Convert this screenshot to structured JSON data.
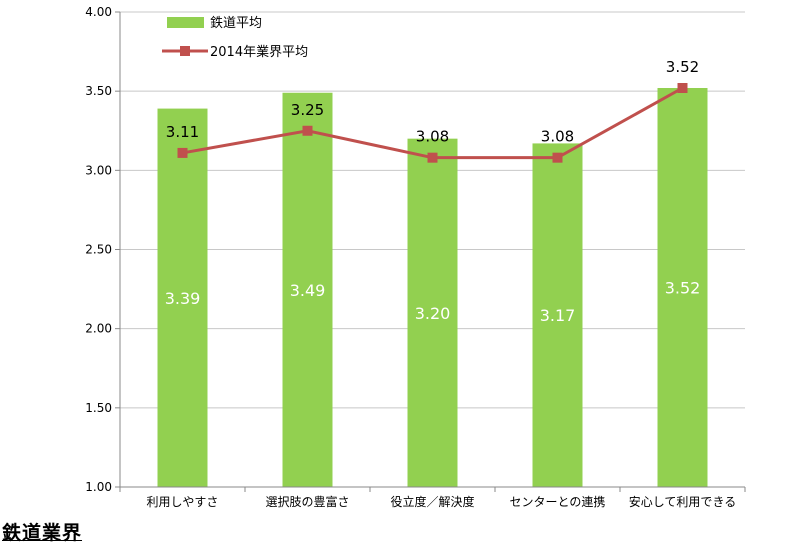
{
  "caption": "鉄道業界",
  "chart_data": {
    "type": "bar",
    "categories": [
      "利用しやすさ",
      "選択肢の豊富さ",
      "役立度／解決度",
      "センターとの連携",
      "安心して利用できる"
    ],
    "ylim": [
      1.0,
      4.0
    ],
    "yticks": [
      "1.00",
      "1.50",
      "2.00",
      "2.50",
      "3.00",
      "3.50",
      "4.00"
    ],
    "grid": true,
    "legend_position": "top-left",
    "series": [
      {
        "name": "鉄道平均",
        "type": "bar",
        "color": "#92d050",
        "values": [
          3.39,
          3.49,
          3.2,
          3.17,
          3.52
        ],
        "labels": [
          "3.39",
          "3.49",
          "3.20",
          "3.17",
          "3.52"
        ]
      },
      {
        "name": "2014年業界平均",
        "type": "line",
        "color": "#c0504d",
        "values": [
          3.11,
          3.25,
          3.08,
          3.08,
          3.52
        ],
        "labels": [
          "3.11",
          "3.25",
          "3.08",
          "3.08",
          "3.52"
        ]
      }
    ]
  }
}
